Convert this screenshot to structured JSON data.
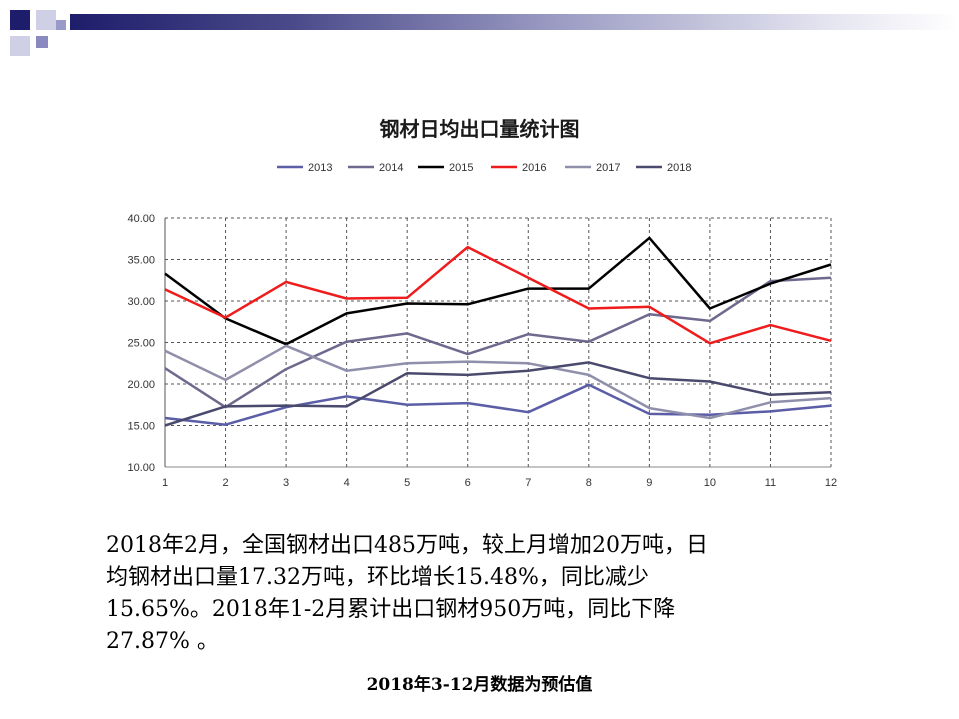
{
  "chart_data": {
    "type": "line",
    "title": "钢材日均出口量统计图",
    "xlabel": "",
    "ylabel": "",
    "x": [
      1,
      2,
      3,
      4,
      5,
      6,
      7,
      8,
      9,
      10,
      11,
      12
    ],
    "ylim": [
      10,
      40
    ],
    "yticks": [
      "10.00",
      "15.00",
      "20.00",
      "25.00",
      "30.00",
      "35.00",
      "40.00"
    ],
    "grid": true,
    "legend_position": "top",
    "series": [
      {
        "name": "2013",
        "color": "#5b5ea6",
        "values": [
          15.9,
          15.1,
          17.2,
          18.5,
          17.5,
          17.7,
          16.6,
          19.9,
          16.4,
          16.3,
          16.7,
          17.4
        ]
      },
      {
        "name": "2014",
        "color": "#6e6a8e",
        "values": [
          21.9,
          17.2,
          21.8,
          25.1,
          26.1,
          23.6,
          26.0,
          25.1,
          28.4,
          27.6,
          32.4,
          32.8
        ]
      },
      {
        "name": "2015",
        "color": "#000000",
        "values": [
          33.3,
          27.9,
          24.8,
          28.5,
          29.7,
          29.6,
          31.5,
          31.5,
          37.6,
          29.1,
          32.1,
          34.4
        ]
      },
      {
        "name": "2016",
        "color": "#ee1c1c",
        "values": [
          31.4,
          28.0,
          32.3,
          30.3,
          30.4,
          36.5,
          32.8,
          29.1,
          29.3,
          24.9,
          27.1,
          25.2
        ]
      },
      {
        "name": "2017",
        "color": "#8f8fab",
        "values": [
          24.0,
          20.5,
          24.6,
          21.6,
          22.5,
          22.7,
          22.5,
          21.1,
          17.1,
          15.9,
          17.8,
          18.3
        ]
      },
      {
        "name": "2018",
        "color": "#4a4a6e",
        "values": [
          15.0,
          17.3,
          17.4,
          17.3,
          21.3,
          21.1,
          21.6,
          22.6,
          20.7,
          20.3,
          18.7,
          19.0
        ]
      }
    ]
  },
  "body_text": {
    "line1": " 2018年2月，全国钢材出口485万吨，较上月增加20万吨，日",
    "line2": "均钢材出口量17.32万吨，环比增长15.48%，同比减少",
    "line3": "15.65%。2018年1-2月累计出口钢材950万吨，同比下降",
    "line4": "27.87% 。"
  },
  "note": "2018年3-12月数据为预估值"
}
